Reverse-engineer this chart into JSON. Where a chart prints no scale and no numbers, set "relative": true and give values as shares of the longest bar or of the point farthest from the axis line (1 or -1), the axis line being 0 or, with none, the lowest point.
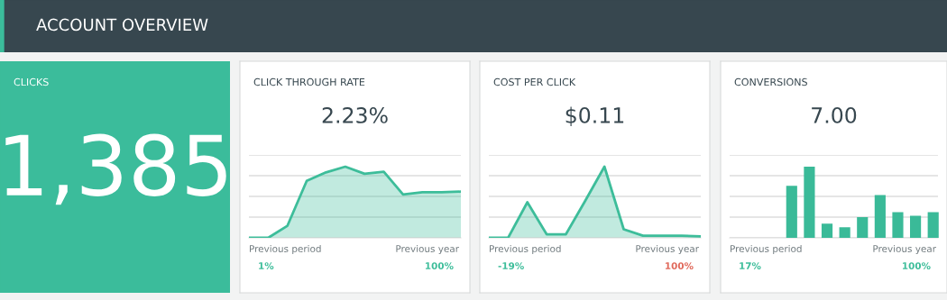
{
  "chart_data": [
    {
      "type": "other",
      "title": "ACCOUNT OVERVIEW"
    },
    {
      "type": "other",
      "title": "CLICKS",
      "annotations": [
        "1,385"
      ]
    },
    {
      "type": "area",
      "title": "CLICK THROUGH RATE",
      "subtitle": "2.23%",
      "relative": true,
      "grid": "y",
      "categories": [
        null,
        null,
        null,
        null,
        null,
        null,
        null,
        null,
        null,
        null,
        null,
        null
      ],
      "series": [
        {
          "color": "#3dbd9a",
          "values": [
            0,
            0,
            0.17,
            0.8,
            0.92,
            1,
            0.9,
            0.93,
            0.61,
            0.64,
            0.64,
            0.65
          ]
        }
      ],
      "annotations": [
        "Previous period",
        "1%",
        "Previous year",
        "100%"
      ]
    },
    {
      "type": "area",
      "title": "COST PER CLICK",
      "subtitle": "$0.11",
      "relative": true,
      "grid": "y",
      "categories": [
        null,
        null,
        null,
        null,
        null,
        null,
        null,
        null,
        null,
        null,
        null,
        null
      ],
      "series": [
        {
          "color": "#3dbd9a",
          "values": [
            0,
            0,
            0.5,
            0.05,
            0.05,
            0.52,
            1,
            0.12,
            0.03,
            0.03,
            0.03,
            0.02
          ]
        }
      ],
      "annotations": [
        "Previous period",
        "-19%",
        "Previous year",
        "100%"
      ]
    },
    {
      "type": "bar",
      "title": "CONVERSIONS",
      "subtitle": "7.00",
      "relative": true,
      "grid": "y",
      "categories": [
        null,
        null,
        null,
        null,
        null,
        null,
        null,
        null,
        null
      ],
      "series": [
        {
          "color": "#3aba98",
          "values": [
            0.73,
            1,
            0.2,
            0.15,
            0.29,
            0.6,
            0.36,
            0.31,
            0.36
          ]
        }
      ],
      "annotations": [
        "Previous period",
        "17%",
        "Previous year",
        "100%"
      ]
    }
  ]
}
